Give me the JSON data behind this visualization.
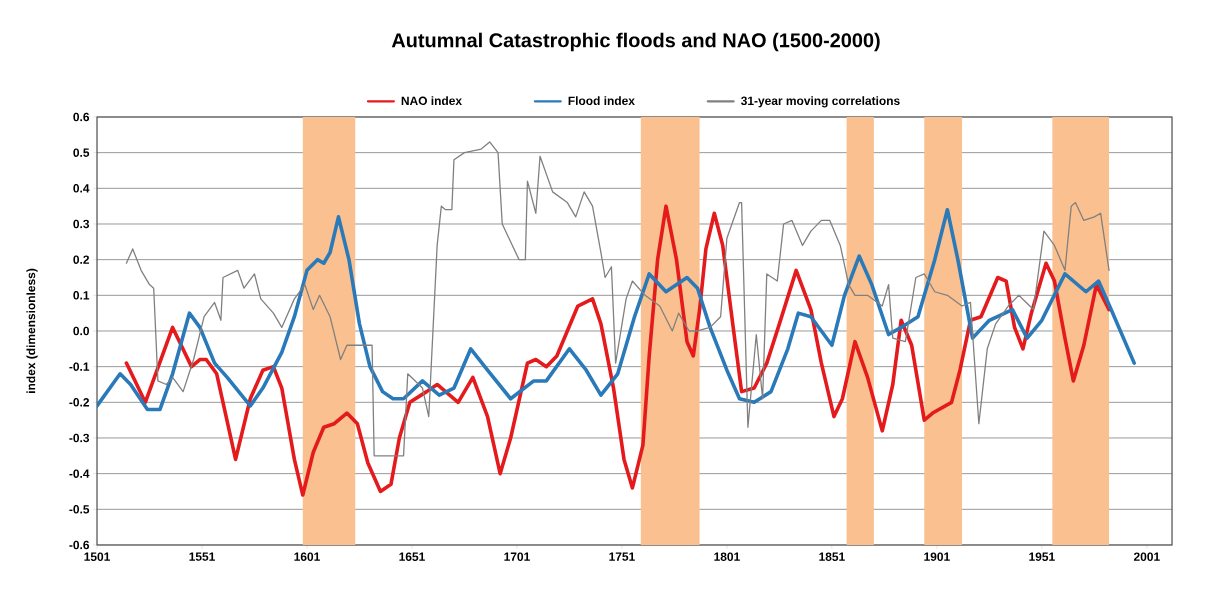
{
  "chart_data": {
    "type": "line",
    "title": "Autumnal Catastrophic floods and NAO (1500-2000)",
    "ylabel": "index (dimensionless)",
    "xlim": [
      1501,
      2013
    ],
    "xticks": [
      1501,
      1551,
      1601,
      1651,
      1701,
      1751,
      1801,
      1851,
      1901,
      1951,
      2001
    ],
    "ylim": [
      -0.6,
      0.6
    ],
    "yticks": [
      -0.6,
      -0.5,
      -0.4,
      -0.3,
      -0.2,
      -0.1,
      {
        "value": 0,
        "label": "0.0"
      },
      0.1,
      0.2,
      0.3,
      0.4,
      0.5,
      0.6
    ],
    "grid": "y",
    "legend": "top",
    "line_style": "solid",
    "marker": "none",
    "bands": [
      {
        "axis": "x",
        "from": 1599,
        "to": 1624,
        "color": "#fac090"
      },
      {
        "axis": "x",
        "from": 1760,
        "to": 1788,
        "color": "#fac090"
      },
      {
        "axis": "x",
        "from": 1858,
        "to": 1871,
        "color": "#fac090"
      },
      {
        "axis": "x",
        "from": 1895,
        "to": 1913,
        "color": "#fac090"
      },
      {
        "axis": "x",
        "from": 1956,
        "to": 1983,
        "color": "#fac090"
      }
    ],
    "series": [
      {
        "name": "NAO index",
        "color": "#e41a1c",
        "x": [
          1515,
          1524,
          1537,
          1546,
          1550,
          1553,
          1558,
          1567,
          1574,
          1580,
          1585,
          1589,
          1595,
          1599,
          1604,
          1609,
          1614,
          1620,
          1625,
          1630,
          1636,
          1641,
          1645,
          1650,
          1658,
          1663,
          1673,
          1680,
          1687,
          1693,
          1698,
          1706,
          1710,
          1715,
          1720,
          1725,
          1730,
          1737,
          1741,
          1747,
          1752,
          1756,
          1761,
          1764,
          1768,
          1772,
          1777,
          1782,
          1785,
          1788,
          1791,
          1795,
          1799,
          1804,
          1808,
          1814,
          1820,
          1826,
          1834,
          1841,
          1846,
          1852,
          1856,
          1862,
          1868,
          1875,
          1880,
          1884,
          1889,
          1895,
          1899,
          1908,
          1912,
          1917,
          1922,
          1930,
          1934,
          1938,
          1942,
          1946,
          1953,
          1957,
          1962,
          1966,
          1971,
          1977,
          1983
        ],
        "values": [
          -0.09,
          -0.2,
          0.01,
          -0.1,
          -0.08,
          -0.08,
          -0.12,
          -0.36,
          -0.19,
          -0.11,
          -0.1,
          -0.16,
          -0.36,
          -0.46,
          -0.34,
          -0.27,
          -0.26,
          -0.23,
          -0.26,
          -0.37,
          -0.45,
          -0.43,
          -0.3,
          -0.2,
          -0.17,
          -0.15,
          -0.2,
          -0.13,
          -0.24,
          -0.4,
          -0.3,
          -0.09,
          -0.08,
          -0.1,
          -0.07,
          0.0,
          0.07,
          0.09,
          0.02,
          -0.16,
          -0.36,
          -0.44,
          -0.32,
          -0.07,
          0.2,
          0.35,
          0.2,
          -0.03,
          -0.07,
          0.06,
          0.23,
          0.33,
          0.24,
          0.01,
          -0.17,
          -0.16,
          -0.09,
          0.02,
          0.17,
          0.06,
          -0.09,
          -0.24,
          -0.19,
          -0.03,
          -0.13,
          -0.28,
          -0.15,
          0.03,
          -0.04,
          -0.25,
          -0.23,
          -0.2,
          -0.11,
          0.03,
          0.04,
          0.15,
          0.14,
          0.01,
          -0.05,
          0.05,
          0.19,
          0.14,
          -0.02,
          -0.14,
          -0.04,
          0.13,
          0.06
        ]
      },
      {
        "name": "Flood index",
        "color": "#2a7ab9",
        "x": [
          1501,
          1512,
          1517,
          1525,
          1531,
          1537,
          1545,
          1550,
          1557,
          1563,
          1574,
          1580,
          1589,
          1595,
          1601,
          1606,
          1609,
          1612,
          1616,
          1621,
          1626,
          1631,
          1637,
          1642,
          1647,
          1656,
          1664,
          1671,
          1679,
          1687,
          1698,
          1709,
          1715,
          1726,
          1734,
          1741,
          1749,
          1757,
          1764,
          1772,
          1782,
          1787,
          1793,
          1801,
          1807,
          1814,
          1822,
          1830,
          1835,
          1841,
          1851,
          1857,
          1864,
          1870,
          1878,
          1884,
          1892,
          1900,
          1906,
          1911,
          1918,
          1926,
          1937,
          1944,
          1951,
          1962,
          1972,
          1978,
          1984,
          1995
        ],
        "values": [
          -0.21,
          -0.12,
          -0.15,
          -0.22,
          -0.22,
          -0.12,
          0.05,
          0.01,
          -0.09,
          -0.13,
          -0.21,
          -0.16,
          -0.06,
          0.04,
          0.17,
          0.2,
          0.19,
          0.22,
          0.32,
          0.2,
          0.02,
          -0.1,
          -0.17,
          -0.19,
          -0.19,
          -0.14,
          -0.18,
          -0.16,
          -0.05,
          -0.11,
          -0.19,
          -0.14,
          -0.14,
          -0.05,
          -0.11,
          -0.18,
          -0.12,
          0.04,
          0.16,
          0.11,
          0.15,
          0.12,
          0.01,
          -0.11,
          -0.19,
          -0.2,
          -0.17,
          -0.05,
          0.05,
          0.04,
          -0.04,
          0.1,
          0.21,
          0.13,
          -0.01,
          0.01,
          0.04,
          0.2,
          0.34,
          0.2,
          -0.02,
          0.03,
          0.06,
          -0.02,
          0.03,
          0.16,
          0.11,
          0.14,
          0.06,
          -0.09
        ]
      },
      {
        "name": "31-year moving correlations",
        "color": "#808080",
        "x": [
          1515,
          1518,
          1522,
          1526,
          1528,
          1530,
          1534,
          1537,
          1542,
          1547,
          1552,
          1557,
          1560,
          1561,
          1568,
          1571,
          1576,
          1579,
          1585,
          1589,
          1595,
          1600,
          1604,
          1607,
          1612,
          1617,
          1620,
          1626,
          1632,
          1633,
          1647,
          1649,
          1656,
          1659,
          1663,
          1665,
          1667,
          1670,
          1671,
          1676,
          1684,
          1688,
          1692,
          1694,
          1702,
          1705,
          1706,
          1710,
          1712,
          1718,
          1725,
          1729,
          1733,
          1737,
          1741,
          1743,
          1746,
          1748,
          1753,
          1756,
          1762,
          1769,
          1775,
          1778,
          1783,
          1787,
          1793,
          1798,
          1801,
          1807,
          1808,
          1811,
          1815,
          1818,
          1820,
          1825,
          1828,
          1832,
          1837,
          1841,
          1846,
          1850,
          1855,
          1859,
          1862,
          1868,
          1875,
          1878,
          1880,
          1886,
          1891,
          1895,
          1900,
          1906,
          1913,
          1917,
          1921,
          1925,
          1929,
          1935,
          1940,
          1947,
          1952,
          1957,
          1962,
          1965,
          1967,
          1971,
          1976,
          1979,
          1983
        ],
        "values": [
          0.19,
          0.23,
          0.17,
          0.13,
          0.12,
          -0.14,
          -0.15,
          -0.13,
          -0.17,
          -0.08,
          0.04,
          0.08,
          0.03,
          0.15,
          0.17,
          0.12,
          0.16,
          0.09,
          0.05,
          0.01,
          0.09,
          0.13,
          0.06,
          0.1,
          0.04,
          -0.08,
          -0.04,
          -0.04,
          -0.04,
          -0.35,
          -0.35,
          -0.12,
          -0.16,
          -0.24,
          0.24,
          0.35,
          0.34,
          0.34,
          0.48,
          0.5,
          0.51,
          0.53,
          0.5,
          0.3,
          0.2,
          0.2,
          0.42,
          0.33,
          0.49,
          0.39,
          0.36,
          0.32,
          0.39,
          0.35,
          0.22,
          0.15,
          0.18,
          -0.09,
          0.09,
          0.14,
          0.1,
          0.07,
          0.0,
          0.05,
          0.0,
          0.0,
          0.01,
          0.04,
          0.26,
          0.36,
          0.36,
          -0.27,
          -0.01,
          -0.19,
          0.16,
          0.14,
          0.3,
          0.31,
          0.24,
          0.28,
          0.31,
          0.31,
          0.24,
          0.13,
          0.1,
          0.1,
          0.07,
          0.13,
          -0.02,
          -0.03,
          0.15,
          0.16,
          0.11,
          0.1,
          0.07,
          0.08,
          -0.26,
          -0.05,
          0.02,
          0.07,
          0.1,
          0.06,
          0.28,
          0.24,
          0.17,
          0.35,
          0.36,
          0.31,
          0.32,
          0.33,
          0.17
        ]
      }
    ]
  }
}
